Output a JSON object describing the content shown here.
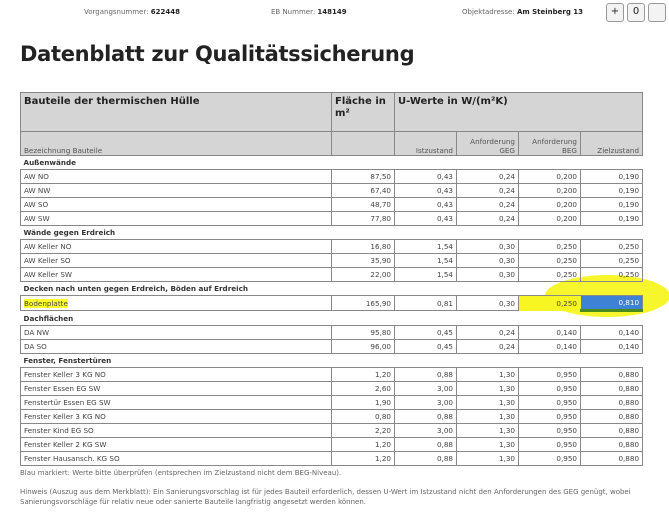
{
  "header": {
    "vorgang_label": "Vorgangsnummer:",
    "vorgang": "622448",
    "eb_label": "EB Nummer:",
    "eb": "148149",
    "objekt_label": "Objektadresse:",
    "objekt": "Am Steinberg 13",
    "zoom_in": "+",
    "zoom_reset": "0"
  },
  "title": "Datenblatt zur Qualitätssicherung",
  "table": {
    "h_bauteile": "Bauteile der thermischen Hülle",
    "h_flaeche": "Fläche in m²",
    "h_uwerte": "U-Werte in W/(m²K)",
    "c_bez": "Bezeichnung Bauteile",
    "c_ist": "Istzustand",
    "c_geg": "Anforderung GEG",
    "c_beg": "Anforderung BEG",
    "c_ziel": "Zielzustand",
    "groups": [
      {
        "name": "Außenwände",
        "rows": [
          [
            "AW NO",
            "87,50",
            "0,43",
            "0,24",
            "0,200",
            "0,190"
          ],
          [
            "AW NW",
            "67,40",
            "0,43",
            "0,24",
            "0,200",
            "0,190"
          ],
          [
            "AW SO",
            "48,70",
            "0,43",
            "0,24",
            "0,200",
            "0,190"
          ],
          [
            "AW SW",
            "77,80",
            "0,43",
            "0,24",
            "0,200",
            "0,190"
          ]
        ]
      },
      {
        "name": "Wände gegen Erdreich",
        "rows": [
          [
            "AW Keller NO",
            "16,80",
            "1,54",
            "0,30",
            "0,250",
            "0,250"
          ],
          [
            "AW Keller SO",
            "35,90",
            "1,54",
            "0,30",
            "0,250",
            "0,250"
          ],
          [
            "AW Keller SW",
            "22,00",
            "1,54",
            "0,30",
            "0,250",
            "0,250"
          ]
        ]
      },
      {
        "name": "Decken nach unten gegen Erdreich, Böden auf Erdreich",
        "rows": [
          [
            "Bodenplatte",
            "165,90",
            "0,81",
            "0,30",
            "0,250",
            "0,810"
          ]
        ]
      },
      {
        "name": "Dachflächen",
        "rows": [
          [
            "DA NW",
            "95,80",
            "0,45",
            "0,24",
            "0,140",
            "0,140"
          ],
          [
            "DA SO",
            "96,00",
            "0,45",
            "0,24",
            "0,140",
            "0,140"
          ]
        ]
      },
      {
        "name": "Fenster, Fenstertüren",
        "rows": [
          [
            "Fenster Keller 3 KG NO",
            "1,20",
            "0,88",
            "1,30",
            "0,950",
            "0,880"
          ],
          [
            "Fenster Essen EG SW",
            "2,60",
            "3,00",
            "1,30",
            "0,950",
            "0,880"
          ],
          [
            "Fenstertür Essen EG SW",
            "1,90",
            "3,00",
            "1,30",
            "0,950",
            "0,880"
          ],
          [
            "Fenster Keller 3 KG NO",
            "0,80",
            "0,88",
            "1,30",
            "0,950",
            "0,880"
          ],
          [
            "Fenster Kind EG SO",
            "2,20",
            "3,00",
            "1,30",
            "0,950",
            "0,880"
          ],
          [
            "Fenster Keller 2 KG SW",
            "1,20",
            "0,88",
            "1,30",
            "0,950",
            "0,880"
          ],
          [
            "Fenster Hausansch. KG SO",
            "1,20",
            "0,88",
            "1,30",
            "0,950",
            "0,880"
          ]
        ]
      }
    ]
  },
  "notes": {
    "blue": "Blau markiert: Werte bitte überprüfen (entsprechen im Zielzustand nicht dem BEG-Niveau).",
    "hint": "Hinweis (Auszug aus dem Merkblatt): Ein Sanierungsvorschlag ist für jedes Bauteil erforderlich, dessen U-Wert im Istzustand nicht den Anforderungen des GEG genügt, wobei Sanierungsvorschläge für relativ neue oder sanierte Bauteile langfristig angesetzt werden können."
  }
}
